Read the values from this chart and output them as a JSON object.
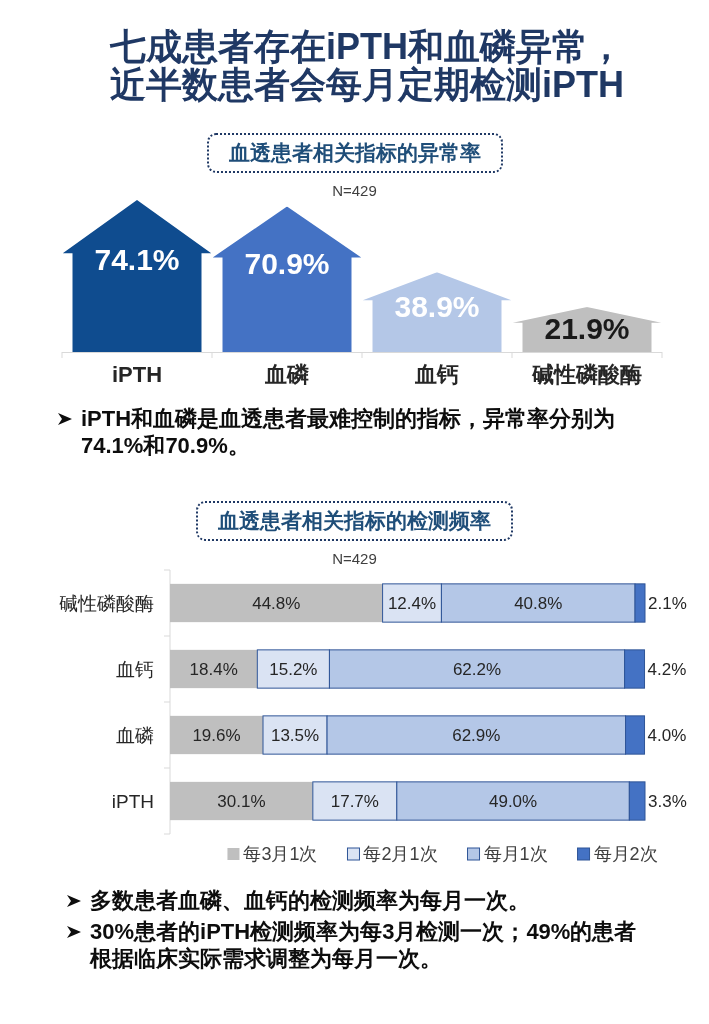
{
  "chart_data": [
    {
      "type": "other",
      "title": "七成患者存在iPTH和血磷异常，近半数患者会每月定期检测iPTH"
    },
    {
      "type": "bar",
      "title": "血透患者相关指标的异常率",
      "subtitle": "N=429",
      "categories": [
        "iPTH",
        "血磷",
        "血钙",
        "碱性磷酸酶"
      ],
      "values": [
        74.1,
        70.9,
        38.9,
        21.9
      ],
      "value_labels": [
        "74.1%",
        "70.9%",
        "38.9%",
        "21.9%"
      ],
      "colors": [
        "#0f4c8f",
        "#4472c4",
        "#b4c7e7",
        "#bfbfbf"
      ],
      "annotations": [
        "iPTH和血磷是血透患者最难控制的指标，异常率分别为74.1%和70.9%。"
      ]
    },
    {
      "type": "bar",
      "orientation": "horizontal",
      "stacked": true,
      "title": "血透患者相关指标的检测频率",
      "subtitle": "N=429",
      "categories": [
        "碱性磷酸酶",
        "血钙",
        "血磷",
        "iPTH"
      ],
      "series": [
        {
          "name": "每3月1次",
          "color": "#bfbfbf",
          "values": [
            44.8,
            18.4,
            19.6,
            30.1
          ],
          "value_labels": [
            "44.8%",
            "18.4%",
            "19.6%",
            "30.1%"
          ]
        },
        {
          "name": "每2月1次",
          "color": "#dae3f3",
          "values": [
            12.4,
            15.2,
            13.5,
            17.7
          ],
          "value_labels": [
            "12.4%",
            "15.2%",
            "13.5%",
            "17.7%"
          ]
        },
        {
          "name": "每月1次",
          "color": "#b4c7e7",
          "values": [
            40.8,
            62.2,
            62.9,
            49.0
          ],
          "value_labels": [
            "40.8%",
            "62.2%",
            "62.9%",
            "49.0%"
          ]
        },
        {
          "name": "每月2次",
          "color": "#4472c4",
          "values": [
            2.1,
            4.2,
            4.0,
            3.3
          ],
          "value_labels": [
            "2.1%",
            "4.2%",
            "4.0%",
            "3.3%"
          ]
        }
      ],
      "legend": "bottom",
      "annotations": [
        "多数患者血磷、血钙的检测频率为每月一次。",
        "30%患者的iPTH检测频率为每3月检测一次；49%的患者根据临床实际需求调整为每月一次。"
      ]
    }
  ]
}
